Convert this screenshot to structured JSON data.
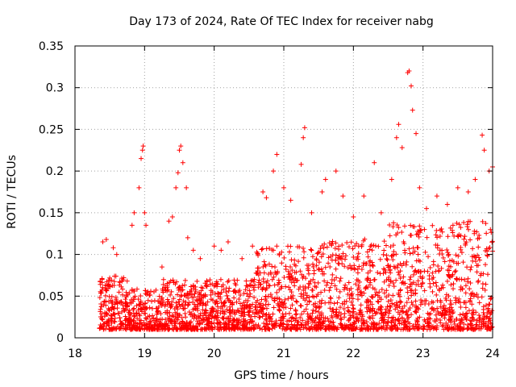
{
  "chart_data": {
    "type": "scatter",
    "title": "Day 173 of 2024, Rate Of TEC Index for receiver nabg",
    "xlabel": "GPS time / hours",
    "ylabel": "ROTI / TECUs",
    "xlim": [
      18,
      24
    ],
    "ylim": [
      0,
      0.35
    ],
    "grid": true,
    "marker": "+",
    "color": "#ff0000",
    "x_ticks": [
      "18",
      "19",
      "20",
      "21",
      "22",
      "23",
      "24"
    ],
    "y_ticks": [
      "0",
      "0.05",
      "0.1",
      "0.15",
      "0.2",
      "0.25",
      "0.3",
      "0.35"
    ],
    "series": [
      {
        "name": "ROTI",
        "points": [
          [
            18.4,
            0.115
          ],
          [
            18.45,
            0.118
          ],
          [
            18.55,
            0.108
          ],
          [
            18.6,
            0.1
          ],
          [
            18.7,
            0.072
          ],
          [
            18.75,
            0.068
          ],
          [
            18.82,
            0.135
          ],
          [
            18.85,
            0.15
          ],
          [
            18.92,
            0.18
          ],
          [
            18.95,
            0.215
          ],
          [
            18.97,
            0.225
          ],
          [
            18.98,
            0.23
          ],
          [
            19.0,
            0.15
          ],
          [
            19.02,
            0.135
          ],
          [
            19.25,
            0.085
          ],
          [
            19.35,
            0.14
          ],
          [
            19.4,
            0.145
          ],
          [
            19.45,
            0.18
          ],
          [
            19.48,
            0.198
          ],
          [
            19.5,
            0.225
          ],
          [
            19.52,
            0.23
          ],
          [
            19.55,
            0.21
          ],
          [
            19.6,
            0.18
          ],
          [
            19.62,
            0.12
          ],
          [
            19.7,
            0.105
          ],
          [
            19.8,
            0.095
          ],
          [
            20.0,
            0.11
          ],
          [
            20.1,
            0.105
          ],
          [
            20.2,
            0.115
          ],
          [
            20.4,
            0.095
          ],
          [
            20.55,
            0.11
          ],
          [
            20.7,
            0.175
          ],
          [
            20.75,
            0.168
          ],
          [
            20.85,
            0.2
          ],
          [
            20.9,
            0.22
          ],
          [
            21.0,
            0.18
          ],
          [
            21.1,
            0.165
          ],
          [
            21.25,
            0.208
          ],
          [
            21.28,
            0.24
          ],
          [
            21.3,
            0.252
          ],
          [
            21.4,
            0.15
          ],
          [
            21.55,
            0.175
          ],
          [
            21.6,
            0.19
          ],
          [
            21.75,
            0.2
          ],
          [
            21.85,
            0.17
          ],
          [
            22.0,
            0.145
          ],
          [
            22.15,
            0.17
          ],
          [
            22.3,
            0.21
          ],
          [
            22.4,
            0.15
          ],
          [
            22.55,
            0.19
          ],
          [
            22.62,
            0.24
          ],
          [
            22.65,
            0.256
          ],
          [
            22.7,
            0.228
          ],
          [
            22.78,
            0.318
          ],
          [
            22.8,
            0.32
          ],
          [
            22.83,
            0.302
          ],
          [
            22.85,
            0.273
          ],
          [
            22.9,
            0.245
          ],
          [
            22.95,
            0.18
          ],
          [
            23.05,
            0.155
          ],
          [
            23.2,
            0.17
          ],
          [
            23.35,
            0.16
          ],
          [
            23.5,
            0.18
          ],
          [
            23.65,
            0.175
          ],
          [
            23.75,
            0.19
          ],
          [
            23.85,
            0.243
          ],
          [
            23.88,
            0.225
          ],
          [
            23.95,
            0.2
          ],
          [
            24.0,
            0.205
          ]
        ]
      }
    ]
  }
}
